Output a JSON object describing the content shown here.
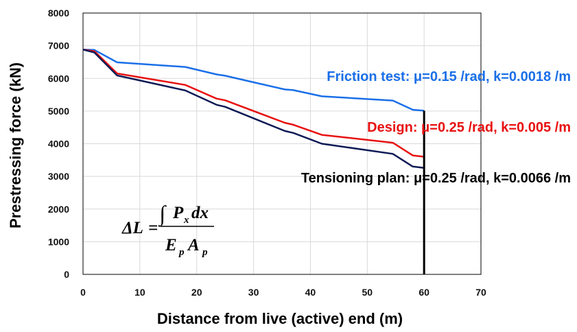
{
  "chart_data": {
    "type": "line",
    "xlabel": "Distance from live (active) end (m)",
    "ylabel": "Prestressing force (kN)",
    "xlim": [
      0,
      70
    ],
    "ylim": [
      0,
      8000
    ],
    "x_ticks": [
      "0",
      "10",
      "20",
      "30",
      "40",
      "50",
      "60",
      "70"
    ],
    "y_ticks": [
      "0",
      "1000",
      "2000",
      "3000",
      "4000",
      "5000",
      "6000",
      "7000",
      "8000"
    ],
    "grid": true,
    "series": [
      {
        "name": "Friction test",
        "label": "Friction test: μ=0.15 /rad, k=0.0018 /m",
        "color": "#1a6fe8",
        "x": [
          0,
          2,
          6,
          18,
          23.5,
          25,
          35.5,
          37,
          42,
          54.5,
          58,
          60
        ],
        "y": [
          6880,
          6870,
          6490,
          6350,
          6120,
          6080,
          5660,
          5640,
          5450,
          5320,
          5040,
          5010
        ]
      },
      {
        "name": "Design",
        "label": "Design: μ=0.25 /rad, k=0.005 /m",
        "color": "#e81010",
        "x": [
          0,
          2,
          6,
          18,
          23.5,
          25,
          35.5,
          37,
          42,
          54.5,
          58,
          60
        ],
        "y": [
          6880,
          6830,
          6150,
          5800,
          5380,
          5330,
          4640,
          4580,
          4270,
          4030,
          3640,
          3600
        ]
      },
      {
        "name": "Tensioning plan",
        "label": "Tensioning plan: μ=0.25 /rad, k=0.0066 /m",
        "color": "#0d1a55",
        "x": [
          0,
          2,
          6,
          18,
          23.5,
          25,
          35.5,
          37,
          42,
          54.5,
          58,
          60
        ],
        "y": [
          6880,
          6790,
          6090,
          5630,
          5190,
          5130,
          4390,
          4330,
          4000,
          3690,
          3300,
          3260
        ]
      }
    ],
    "vertical_line": {
      "x": 60,
      "color": "#000000"
    },
    "annotation": {
      "lhs": "ΔL",
      "equals": "=",
      "integral": "∫",
      "P": "P",
      "P_sub": "x",
      "dx": "dx",
      "E": "E",
      "E_sub": "p",
      "A": "A",
      "A_sub": "p"
    }
  }
}
